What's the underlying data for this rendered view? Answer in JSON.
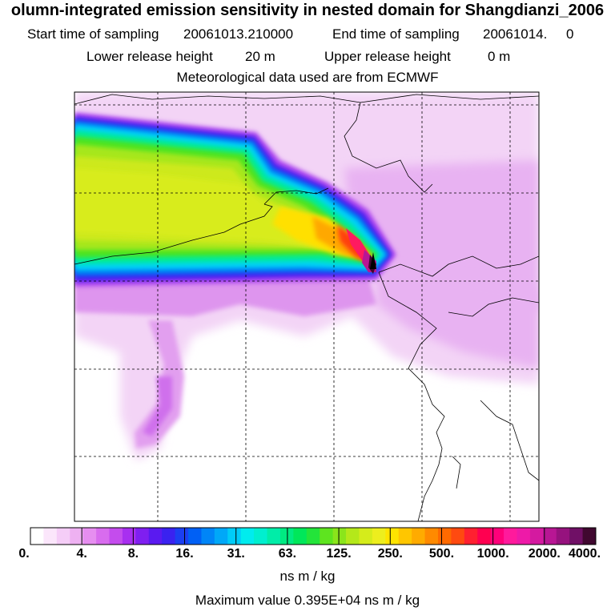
{
  "header": {
    "title": "olumn-integrated emission sensitivity in nested domain for Shangdianzi_2006",
    "start_label": "Start time of sampling",
    "start_value": "20061013.210000",
    "end_label": "End time of sampling",
    "end_value": "20061014.     0",
    "lower_label": "Lower release height",
    "lower_value": "20 m",
    "upper_label": "Upper release height",
    "upper_value": "0 m",
    "met_line": "Meteorological data used are from ECMWF"
  },
  "colorbar": {
    "labels": [
      "0.",
      "4.",
      "8.",
      "16.",
      "31.",
      "63.",
      "125.",
      "250.",
      "500.",
      "1000.",
      "2000.",
      "4000."
    ],
    "colors": [
      "#ffffff",
      "#fbe6fb",
      "#f5cdf7",
      "#eeb1f2",
      "#e68ef0",
      "#d86cee",
      "#c44ced",
      "#a82ff0",
      "#7f1ff0",
      "#5a1af0",
      "#3a22f0",
      "#1b3ff2",
      "#0060f5",
      "#0085f7",
      "#00a8f8",
      "#00ccf8",
      "#00ecee",
      "#00efcf",
      "#00eda8",
      "#00ea82",
      "#00e75a",
      "#23e43a",
      "#5ee41f",
      "#8ae51b",
      "#b4e81a",
      "#d5ec1b",
      "#edee1e",
      "#ffe400",
      "#ffc600",
      "#ffab00",
      "#ff8a00",
      "#ff6a00",
      "#ff4a10",
      "#ff2030",
      "#ff0050",
      "#ff007a",
      "#ff1a9c",
      "#ee1aa8",
      "#d41aa0",
      "#b81694",
      "#96127e",
      "#701066",
      "#400830"
    ],
    "units": "ns m / kg",
    "max_text": "Maximum value  0.395E+04 ns m / kg"
  },
  "map": {
    "peak_value": 3950
  },
  "icons": {
    "receptor": "receptor-marker-icon"
  }
}
